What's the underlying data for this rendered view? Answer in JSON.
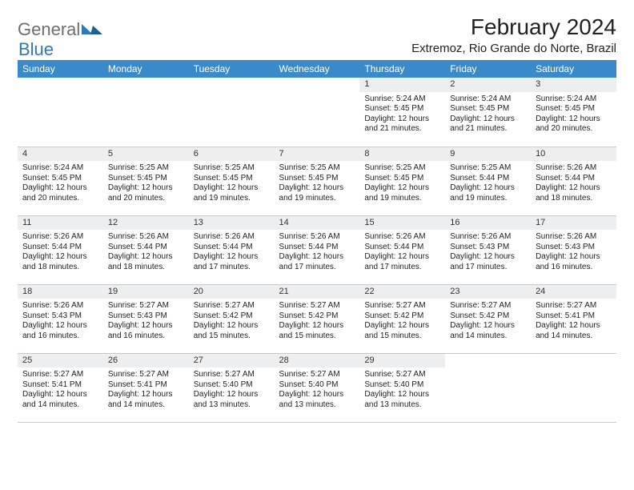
{
  "logo": {
    "part1": "General",
    "part2": "Blue"
  },
  "title": "February 2024",
  "location": "Extremoz, Rio Grande do Norte, Brazil",
  "header_bg": "#3a8ac9",
  "daybar_bg": "#eceeef",
  "weekdays": [
    "Sunday",
    "Monday",
    "Tuesday",
    "Wednesday",
    "Thursday",
    "Friday",
    "Saturday"
  ],
  "weeks": [
    [
      {
        "n": "",
        "sr": "",
        "ss": "",
        "dl1": "",
        "dl2": ""
      },
      {
        "n": "",
        "sr": "",
        "ss": "",
        "dl1": "",
        "dl2": ""
      },
      {
        "n": "",
        "sr": "",
        "ss": "",
        "dl1": "",
        "dl2": ""
      },
      {
        "n": "",
        "sr": "",
        "ss": "",
        "dl1": "",
        "dl2": ""
      },
      {
        "n": "1",
        "sr": "Sunrise: 5:24 AM",
        "ss": "Sunset: 5:45 PM",
        "dl1": "Daylight: 12 hours",
        "dl2": "and 21 minutes."
      },
      {
        "n": "2",
        "sr": "Sunrise: 5:24 AM",
        "ss": "Sunset: 5:45 PM",
        "dl1": "Daylight: 12 hours",
        "dl2": "and 21 minutes."
      },
      {
        "n": "3",
        "sr": "Sunrise: 5:24 AM",
        "ss": "Sunset: 5:45 PM",
        "dl1": "Daylight: 12 hours",
        "dl2": "and 20 minutes."
      }
    ],
    [
      {
        "n": "4",
        "sr": "Sunrise: 5:24 AM",
        "ss": "Sunset: 5:45 PM",
        "dl1": "Daylight: 12 hours",
        "dl2": "and 20 minutes."
      },
      {
        "n": "5",
        "sr": "Sunrise: 5:25 AM",
        "ss": "Sunset: 5:45 PM",
        "dl1": "Daylight: 12 hours",
        "dl2": "and 20 minutes."
      },
      {
        "n": "6",
        "sr": "Sunrise: 5:25 AM",
        "ss": "Sunset: 5:45 PM",
        "dl1": "Daylight: 12 hours",
        "dl2": "and 19 minutes."
      },
      {
        "n": "7",
        "sr": "Sunrise: 5:25 AM",
        "ss": "Sunset: 5:45 PM",
        "dl1": "Daylight: 12 hours",
        "dl2": "and 19 minutes."
      },
      {
        "n": "8",
        "sr": "Sunrise: 5:25 AM",
        "ss": "Sunset: 5:45 PM",
        "dl1": "Daylight: 12 hours",
        "dl2": "and 19 minutes."
      },
      {
        "n": "9",
        "sr": "Sunrise: 5:25 AM",
        "ss": "Sunset: 5:44 PM",
        "dl1": "Daylight: 12 hours",
        "dl2": "and 19 minutes."
      },
      {
        "n": "10",
        "sr": "Sunrise: 5:26 AM",
        "ss": "Sunset: 5:44 PM",
        "dl1": "Daylight: 12 hours",
        "dl2": "and 18 minutes."
      }
    ],
    [
      {
        "n": "11",
        "sr": "Sunrise: 5:26 AM",
        "ss": "Sunset: 5:44 PM",
        "dl1": "Daylight: 12 hours",
        "dl2": "and 18 minutes."
      },
      {
        "n": "12",
        "sr": "Sunrise: 5:26 AM",
        "ss": "Sunset: 5:44 PM",
        "dl1": "Daylight: 12 hours",
        "dl2": "and 18 minutes."
      },
      {
        "n": "13",
        "sr": "Sunrise: 5:26 AM",
        "ss": "Sunset: 5:44 PM",
        "dl1": "Daylight: 12 hours",
        "dl2": "and 17 minutes."
      },
      {
        "n": "14",
        "sr": "Sunrise: 5:26 AM",
        "ss": "Sunset: 5:44 PM",
        "dl1": "Daylight: 12 hours",
        "dl2": "and 17 minutes."
      },
      {
        "n": "15",
        "sr": "Sunrise: 5:26 AM",
        "ss": "Sunset: 5:44 PM",
        "dl1": "Daylight: 12 hours",
        "dl2": "and 17 minutes."
      },
      {
        "n": "16",
        "sr": "Sunrise: 5:26 AM",
        "ss": "Sunset: 5:43 PM",
        "dl1": "Daylight: 12 hours",
        "dl2": "and 17 minutes."
      },
      {
        "n": "17",
        "sr": "Sunrise: 5:26 AM",
        "ss": "Sunset: 5:43 PM",
        "dl1": "Daylight: 12 hours",
        "dl2": "and 16 minutes."
      }
    ],
    [
      {
        "n": "18",
        "sr": "Sunrise: 5:26 AM",
        "ss": "Sunset: 5:43 PM",
        "dl1": "Daylight: 12 hours",
        "dl2": "and 16 minutes."
      },
      {
        "n": "19",
        "sr": "Sunrise: 5:27 AM",
        "ss": "Sunset: 5:43 PM",
        "dl1": "Daylight: 12 hours",
        "dl2": "and 16 minutes."
      },
      {
        "n": "20",
        "sr": "Sunrise: 5:27 AM",
        "ss": "Sunset: 5:42 PM",
        "dl1": "Daylight: 12 hours",
        "dl2": "and 15 minutes."
      },
      {
        "n": "21",
        "sr": "Sunrise: 5:27 AM",
        "ss": "Sunset: 5:42 PM",
        "dl1": "Daylight: 12 hours",
        "dl2": "and 15 minutes."
      },
      {
        "n": "22",
        "sr": "Sunrise: 5:27 AM",
        "ss": "Sunset: 5:42 PM",
        "dl1": "Daylight: 12 hours",
        "dl2": "and 15 minutes."
      },
      {
        "n": "23",
        "sr": "Sunrise: 5:27 AM",
        "ss": "Sunset: 5:42 PM",
        "dl1": "Daylight: 12 hours",
        "dl2": "and 14 minutes."
      },
      {
        "n": "24",
        "sr": "Sunrise: 5:27 AM",
        "ss": "Sunset: 5:41 PM",
        "dl1": "Daylight: 12 hours",
        "dl2": "and 14 minutes."
      }
    ],
    [
      {
        "n": "25",
        "sr": "Sunrise: 5:27 AM",
        "ss": "Sunset: 5:41 PM",
        "dl1": "Daylight: 12 hours",
        "dl2": "and 14 minutes."
      },
      {
        "n": "26",
        "sr": "Sunrise: 5:27 AM",
        "ss": "Sunset: 5:41 PM",
        "dl1": "Daylight: 12 hours",
        "dl2": "and 14 minutes."
      },
      {
        "n": "27",
        "sr": "Sunrise: 5:27 AM",
        "ss": "Sunset: 5:40 PM",
        "dl1": "Daylight: 12 hours",
        "dl2": "and 13 minutes."
      },
      {
        "n": "28",
        "sr": "Sunrise: 5:27 AM",
        "ss": "Sunset: 5:40 PM",
        "dl1": "Daylight: 12 hours",
        "dl2": "and 13 minutes."
      },
      {
        "n": "29",
        "sr": "Sunrise: 5:27 AM",
        "ss": "Sunset: 5:40 PM",
        "dl1": "Daylight: 12 hours",
        "dl2": "and 13 minutes."
      },
      {
        "n": "",
        "sr": "",
        "ss": "",
        "dl1": "",
        "dl2": ""
      },
      {
        "n": "",
        "sr": "",
        "ss": "",
        "dl1": "",
        "dl2": ""
      }
    ]
  ]
}
